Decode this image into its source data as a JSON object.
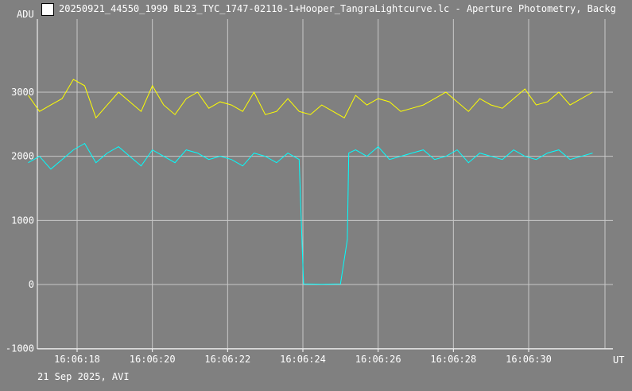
{
  "window": {
    "title": "20250921_44550_1999 BL23_TYC_1747-02110-1+Hooper_TangraLightcurve.lc - Aperture Photometry, Backg",
    "icon": "tangra-app-icon"
  },
  "footer": {
    "date_label": "21 Sep 2025, AVI"
  },
  "colors": {
    "background": "#808080",
    "grid": "#c8c8c8",
    "series_yellow": "#ffff00",
    "series_cyan": "#00ffff",
    "text": "#ffffff"
  },
  "chart_data": {
    "type": "line",
    "title": "",
    "ylabel": "ADU",
    "xlabel": "UT",
    "ylim": [
      -1000,
      4200
    ],
    "xlim": [
      16.7,
      31.9
    ],
    "y_ticks": [
      -1000,
      0,
      1000,
      2000,
      3000
    ],
    "y_tick_labels": [
      "-1000",
      "0",
      "1000",
      "2000",
      "3000"
    ],
    "x_ticks": [
      18,
      20,
      22,
      24,
      26,
      28,
      30
    ],
    "x_tick_labels": [
      "16:06:18",
      "16:06:20",
      "16:06:22",
      "16:06:24",
      "16:06:26",
      "16:06:28",
      "16:06:30"
    ],
    "x_units": "seconds after 16:06:00 UT",
    "grid": true,
    "series": [
      {
        "color": "#ffff00",
        "x": [
          16.7,
          17.0,
          17.3,
          17.6,
          17.9,
          18.2,
          18.5,
          18.8,
          19.1,
          19.4,
          19.7,
          20.0,
          20.3,
          20.6,
          20.9,
          21.2,
          21.5,
          21.8,
          22.1,
          22.4,
          22.7,
          23.0,
          23.3,
          23.6,
          23.9,
          24.2,
          24.5,
          24.8,
          25.1,
          25.4,
          25.7,
          26.0,
          26.3,
          26.6,
          26.9,
          27.2,
          27.5,
          27.8,
          28.1,
          28.4,
          28.7,
          29.0,
          29.3,
          29.6,
          29.9,
          30.2,
          30.5,
          30.8,
          31.1,
          31.4,
          31.7
        ],
        "values": [
          2950,
          2700,
          2800,
          2900,
          3200,
          3100,
          2600,
          2800,
          3000,
          2850,
          2700,
          3100,
          2800,
          2650,
          2900,
          3000,
          2750,
          2850,
          2800,
          2700,
          3000,
          2650,
          2700,
          2900,
          2700,
          2650,
          2800,
          2700,
          2600,
          2950,
          2800,
          2900,
          2850,
          2700,
          2750,
          2800,
          2900,
          3000,
          2850,
          2700,
          2900,
          2800,
          2750,
          2900,
          3050,
          2800,
          2850,
          3000,
          2800,
          2900,
          3000
        ]
      },
      {
        "color": "#00ffff",
        "x": [
          16.7,
          17.0,
          17.3,
          17.6,
          17.9,
          18.2,
          18.5,
          18.8,
          19.1,
          19.4,
          19.7,
          20.0,
          20.3,
          20.6,
          20.9,
          21.2,
          21.5,
          21.8,
          22.1,
          22.4,
          22.7,
          23.0,
          23.3,
          23.6,
          23.9,
          23.98,
          24.02,
          24.5,
          25.0,
          25.18,
          25.22,
          25.4,
          25.7,
          26.0,
          26.3,
          26.6,
          26.9,
          27.2,
          27.5,
          27.8,
          28.1,
          28.4,
          28.7,
          29.0,
          29.3,
          29.6,
          29.9,
          30.2,
          30.5,
          30.8,
          31.1,
          31.4,
          31.7
        ],
        "values": [
          1900,
          2000,
          1800,
          1950,
          2100,
          2200,
          1900,
          2050,
          2150,
          2000,
          1850,
          2100,
          2000,
          1900,
          2100,
          2050,
          1950,
          2000,
          1950,
          1850,
          2050,
          2000,
          1900,
          2050,
          1950,
          600,
          10,
          5,
          10,
          700,
          2050,
          2100,
          2000,
          2150,
          1950,
          2000,
          2050,
          2100,
          1950,
          2000,
          2100,
          1900,
          2050,
          2000,
          1950,
          2100,
          2000,
          1950,
          2050,
          2100,
          1950,
          2000,
          2050
        ]
      }
    ]
  }
}
